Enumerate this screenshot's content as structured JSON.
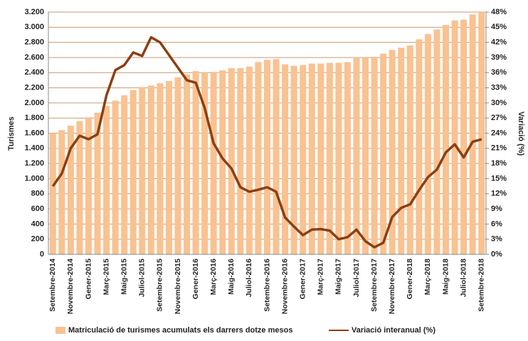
{
  "chart_data": {
    "type": "bar_line",
    "categories": [
      "Setembre-2014",
      null,
      "Novembre-2014",
      null,
      "Gener-2015",
      null,
      "Març-2015",
      null,
      "Maig-2015",
      null,
      "Juliol-2015",
      null,
      "Setembre-2015",
      null,
      "Novembre-2015",
      null,
      "Gener-2016",
      null,
      "Març-2016",
      null,
      "Maig-2016",
      null,
      "Juliol-2016",
      null,
      "Setembre-2016",
      null,
      "Novembre-2016",
      null,
      "Gener-2017",
      null,
      "Març-2017",
      null,
      "Maig-2017",
      null,
      "Juliol-2017",
      null,
      "Setembre-2017",
      null,
      "Novembre-2017",
      null,
      "Gener-2018",
      null,
      "Març-2018",
      null,
      "Maig-2018",
      null,
      "Juliol-2018",
      null,
      "Setembre-2018"
    ],
    "series": [
      {
        "name": "Matriculació de turismes acumulats els darrers dotze mesos",
        "type": "bar",
        "color": "#f9c291",
        "values": [
          1600,
          1640,
          1700,
          1760,
          1810,
          1870,
          1960,
          2030,
          2100,
          2170,
          2210,
          2230,
          2260,
          2290,
          2340,
          2380,
          2420,
          2400,
          2410,
          2430,
          2460,
          2460,
          2480,
          2540,
          2570,
          2580,
          2510,
          2490,
          2500,
          2520,
          2520,
          2530,
          2530,
          2540,
          2590,
          2600,
          2610,
          2650,
          2700,
          2730,
          2760,
          2840,
          2910,
          2970,
          3030,
          3090,
          3100,
          3170,
          3200
        ]
      },
      {
        "name": "Variació interanual (%)",
        "type": "line",
        "axis": "y2",
        "color": "#8b3f12",
        "values": [
          13.5,
          16,
          21,
          23.5,
          22.8,
          23.8,
          31.5,
          36.5,
          37.5,
          40,
          39.3,
          43,
          42,
          39.5,
          37,
          34.5,
          34,
          29,
          22,
          19,
          17,
          13.3,
          12.4,
          12.8,
          13.3,
          12.4,
          7.3,
          5.5,
          3.8,
          4.9,
          5,
          4.7,
          3,
          3.4,
          4.9,
          2.6,
          1.4,
          2.3,
          7.4,
          9.2,
          9.9,
          12.7,
          15.3,
          16.8,
          20.2,
          21.8,
          19.2,
          22.3,
          22.8
        ]
      }
    ],
    "ylabel": "Turismes",
    "y2label": "Variació (%)",
    "ylim": [
      0,
      3200
    ],
    "yticks": [
      0,
      200,
      400,
      600,
      800,
      {
        "value": 1000,
        "label": "1.000"
      },
      {
        "value": 1200,
        "label": "1.200"
      },
      {
        "value": 1400,
        "label": "1.400"
      },
      {
        "value": 1600,
        "label": "1.600"
      },
      {
        "value": 1800,
        "label": "1.800"
      },
      {
        "value": 2000,
        "label": "2.000"
      },
      {
        "value": 2200,
        "label": "2.200"
      },
      {
        "value": 2400,
        "label": "2.400"
      },
      {
        "value": 2600,
        "label": "2.600"
      },
      {
        "value": 2800,
        "label": "2.800"
      },
      {
        "value": 3000,
        "label": "3.000"
      },
      {
        "value": 3200,
        "label": "3.200"
      }
    ],
    "y2lim": [
      0,
      48
    ],
    "y2ticks": [
      {
        "value": 0,
        "label": "0%"
      },
      {
        "value": 3,
        "label": "3%"
      },
      {
        "value": 6,
        "label": "6%"
      },
      {
        "value": 9,
        "label": "9%"
      },
      {
        "value": 12,
        "label": "12%"
      },
      {
        "value": 15,
        "label": "15%"
      },
      {
        "value": 18,
        "label": "18%"
      },
      {
        "value": 21,
        "label": "21%"
      },
      {
        "value": 24,
        "label": "24%"
      },
      {
        "value": 27,
        "label": "27%"
      },
      {
        "value": 30,
        "label": "30%"
      },
      {
        "value": 33,
        "label": "33%"
      },
      {
        "value": 36,
        "label": "36%"
      },
      {
        "value": 39,
        "label": "39%"
      },
      {
        "value": 42,
        "label": "42%"
      },
      {
        "value": 45,
        "label": "45%"
      },
      {
        "value": 48,
        "label": "48%"
      }
    ],
    "grid": true,
    "grid_color": "#c79a72",
    "legend": "bottom"
  }
}
